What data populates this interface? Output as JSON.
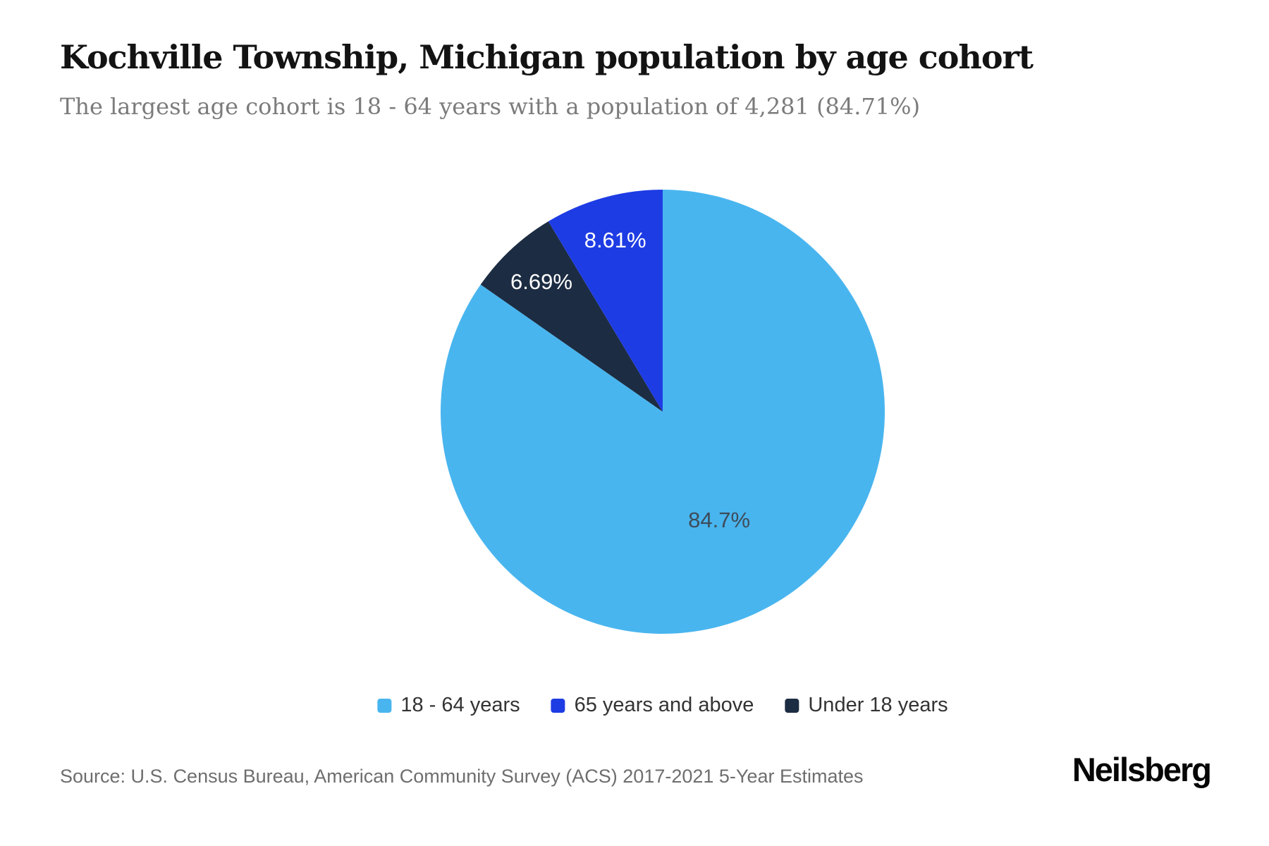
{
  "page": {
    "background": "#ffffff"
  },
  "header": {
    "title": "Kochville Township, Michigan population by age cohort",
    "subtitle": "The largest age cohort is 18 - 64 years with a population of 4,281 (84.71%)"
  },
  "chart_data": {
    "type": "pie",
    "title": "Kochville Township, Michigan population by age cohort",
    "subtitle": "The largest age cohort is 18 - 64 years with a population of 4,281 (84.71%)",
    "start_angle_deg": 0,
    "direction": "clockwise",
    "slices": [
      {
        "label": "18 - 64 years",
        "value": 84.7,
        "display_label": "84.7%",
        "color": "#49b5ef",
        "label_color": "#3e4c59"
      },
      {
        "label": "Under 18 years",
        "value": 6.69,
        "display_label": "6.69%",
        "color": "#1c2c42",
        "label_color": "#ffffff"
      },
      {
        "label": "65 years and above",
        "value": 8.61,
        "display_label": "8.61%",
        "color": "#1e3ce4",
        "label_color": "#ffffff"
      }
    ],
    "legend_position": "bottom-center",
    "legend": [
      {
        "label": "18 - 64 years",
        "color": "#49b5ef"
      },
      {
        "label": "65 years and above",
        "color": "#1e3ce4"
      },
      {
        "label": "Under 18 years",
        "color": "#1c2c42"
      }
    ]
  },
  "footer": {
    "source": "Source: U.S. Census Bureau, American Community Survey (ACS) 2017-2021 5-Year Estimates",
    "brand": "Neilsberg"
  }
}
